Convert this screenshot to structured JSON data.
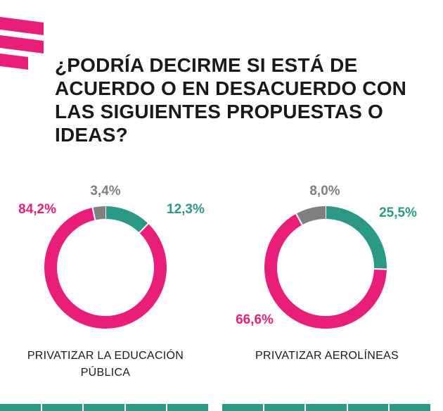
{
  "header": {
    "title": "¿PODRÍA DECIRME SI ESTÁ DE ACUERDO O EN DESACUERDO CON LAS SIGUIENTES PROPUESTAS O IDEAS?",
    "accent_color": "#e91e7a"
  },
  "colors": {
    "agree": "#e91e7a",
    "disagree": "#2a9a87",
    "neutral": "#808080",
    "title_text": "#1a1a1a"
  },
  "chart_data": [
    {
      "type": "pie",
      "variant": "donut",
      "title": "PRIVATIZAR LA EDUCACIÓN PÚBLICA",
      "slices": [
        {
          "value": 12.3,
          "label": "12,3%",
          "color": "#2a9a87"
        },
        {
          "value": 84.2,
          "label": "84,2%",
          "color": "#e91e7a"
        },
        {
          "value": 3.4,
          "label": "3,4%",
          "color": "#808080"
        }
      ]
    },
    {
      "type": "pie",
      "variant": "donut",
      "title": "PRIVATIZAR AEROLÍNEAS",
      "slices": [
        {
          "value": 25.5,
          "label": "25,5%",
          "color": "#2a9a87"
        },
        {
          "value": 66.6,
          "label": "66,6%",
          "color": "#e91e7a"
        },
        {
          "value": 8.0,
          "label": "8,0%",
          "color": "#808080"
        }
      ]
    }
  ]
}
